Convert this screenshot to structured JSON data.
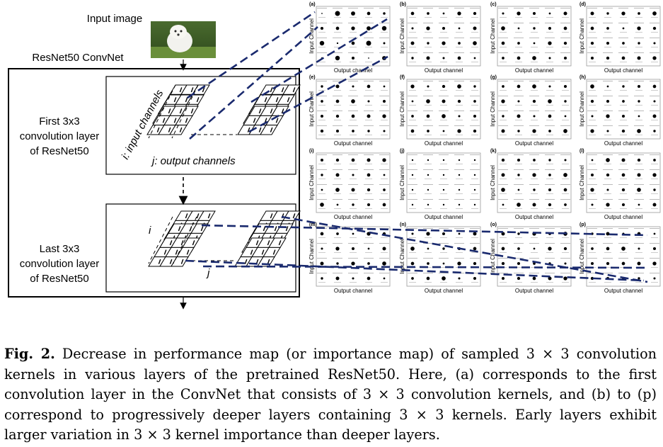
{
  "diagram": {
    "input_label": "Input image",
    "convnet_label": "ResNet50 ConvNet",
    "first_layer": [
      "First 3x3",
      "convolution layer",
      "of ResNet50"
    ],
    "last_layer": [
      "Last 3x3",
      "convolution layer",
      "of ResNet50"
    ],
    "i_label": "i: input channels",
    "j_label": "j: output channels",
    "i_short": "i",
    "j_short": "j"
  },
  "panels": {
    "letters": [
      "(a)",
      "(b)",
      "(c)",
      "(d)",
      "(e)",
      "(f)",
      "(g)",
      "(h)",
      "(i)",
      "(j)",
      "(k)",
      "(l)",
      "(m)",
      "(n)",
      "(o)",
      "(p)"
    ],
    "xlabel": "Output channel",
    "ylabel": "Input Channel"
  },
  "caption": {
    "label": "Fig. 2.",
    "text": " Decrease in performance map (or importance map) of sampled 3 × 3 convolution kernels in various layers of the pretrained ResNet50. Here, (a) corresponds to the first convolution layer in the ConvNet that consists of 3 × 3 convolution kernels, and (b) to (p) correspond to progressively deeper layers containing 3 × 3 kernels. Early layers exhibit larger variation in 3 × 3 kernel importance than deeper layers."
  }
}
